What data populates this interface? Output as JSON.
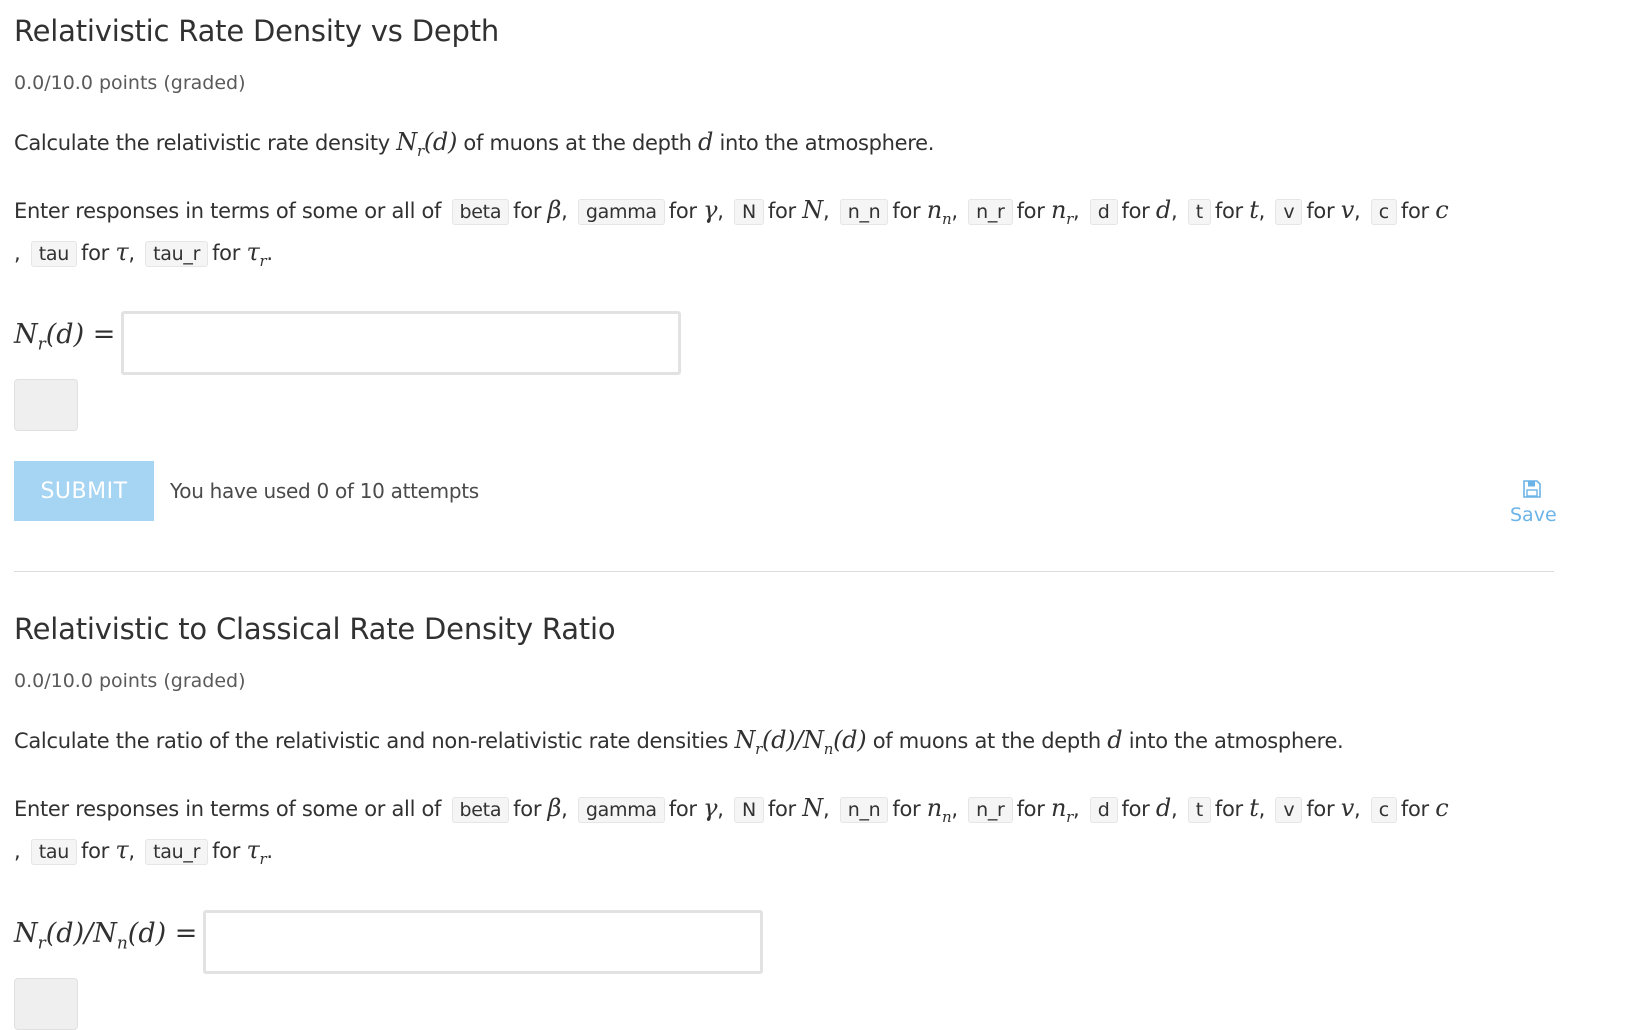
{
  "variables": [
    {
      "code": "beta",
      "sym": "β",
      "sub": ""
    },
    {
      "code": "gamma",
      "sym": "γ",
      "sub": ""
    },
    {
      "code": "N",
      "sym": "N",
      "sub": ""
    },
    {
      "code": "n_n",
      "sym": "n",
      "sub": "n"
    },
    {
      "code": "n_r",
      "sym": "n",
      "sub": "r"
    },
    {
      "code": "d",
      "sym": "d",
      "sub": ""
    },
    {
      "code": "t",
      "sym": "t",
      "sub": ""
    },
    {
      "code": "v",
      "sym": "v",
      "sub": ""
    },
    {
      "code": "c",
      "sym": "c",
      "sub": ""
    },
    {
      "code": "tau",
      "sym": "τ",
      "sub": ""
    },
    {
      "code": "tau_r",
      "sym": "τ",
      "sub": "r"
    }
  ],
  "vars_intro": "Enter responses in terms of some or all of",
  "for_word": "for",
  "problems": [
    {
      "title": "Relativistic Rate Density vs Depth",
      "points": "0.0/10.0 points (graded)",
      "q_pre": "Calculate the relativistic rate density ",
      "q_math": "N_r(d)",
      "q_post": " of muons at the depth ",
      "q_var": "d",
      "q_end": " into the atmosphere.",
      "answer_label": "N_r(d) =",
      "answer_value": "",
      "submit": "SUBMIT",
      "attempts": "You have used 0 of 10 attempts",
      "save": "Save"
    },
    {
      "title": "Relativistic to Classical Rate Density Ratio",
      "points": "0.0/10.0 points (graded)",
      "q_pre": "Calculate the ratio of the relativistic and non-relativistic rate densities ",
      "q_math": "N_r(d)/N_n(d)",
      "q_post": " of muons at the depth ",
      "q_var": "d",
      "q_end": " into the atmosphere.",
      "answer_label": "N_r(d)/N_n(d) =",
      "answer_value": ""
    }
  ],
  "colors": {
    "submit_bg": "#a6d5f4",
    "save": "#6cb4e8",
    "text": "#313131"
  }
}
